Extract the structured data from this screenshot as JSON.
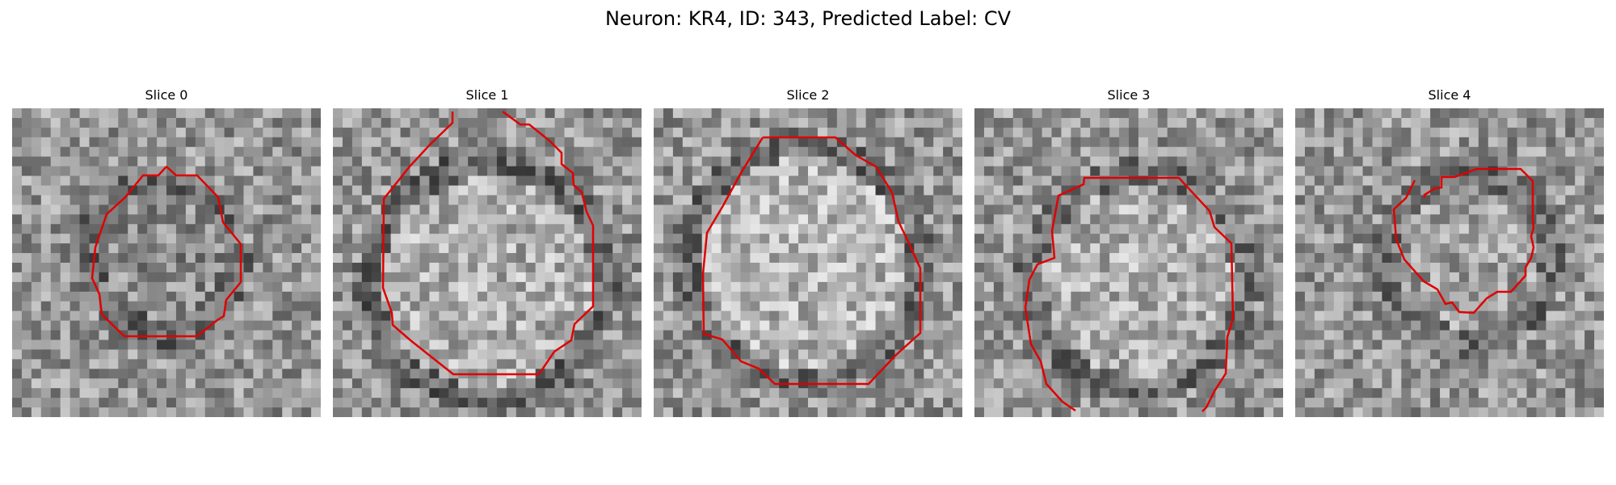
{
  "figure": {
    "title": "Neuron: KR4, ID: 343, Predicted Label: CV"
  },
  "panels": [
    {
      "title": "Slice 0"
    },
    {
      "title": "Slice 1"
    },
    {
      "title": "Slice 2"
    },
    {
      "title": "Slice 3"
    },
    {
      "title": "Slice 4"
    }
  ],
  "colors": {
    "background": "#ffffff",
    "contour": "#e00000",
    "image_colormap": "grayscale"
  }
}
